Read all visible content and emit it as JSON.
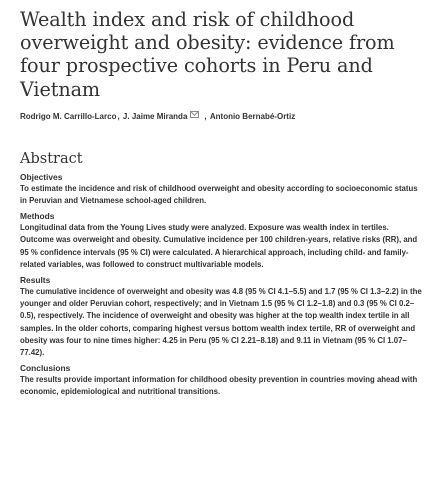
{
  "article": {
    "title": "Wealth index and risk of childhood overweight and obesity: evidence from four prospective cohorts in Peru and Vietnam",
    "authors": [
      "Rodrigo M. Carrillo-Larco",
      "J. Jaime Miranda",
      "Antonio Bernabé-Ortiz"
    ],
    "author_separator": ",",
    "author_separator_2": ", "
  },
  "abstract": {
    "heading": "Abstract",
    "sections": [
      {
        "heading": "Objectives",
        "text": "To estimate the incidence and risk of childhood overweight and obesity according to socioeconomic status in Peruvian and Vietnamese school-aged children."
      },
      {
        "heading": "Methods",
        "text": "Longitudinal data from the Young Lives study were analyzed. Exposure was wealth index in tertiles. Outcome was overweight and obesity. Cumulative incidence per 100 children-years, relative risks (RR), and 95 % confidence intervals (95 % CI) were calculated. A hierarchical approach, including child- and family-related variables, was followed to construct multivariable models."
      },
      {
        "heading": "Results",
        "text": "The cumulative incidence of overweight and obesity was 4.8 (95 % CI 4.1–5.5) and 1.7 (95 % CI 1.3–2.2) in the younger and older Peruvian cohort, respectively; and in Vietnam 1.5 (95 % CI 1.2–1.8) and 0.3 (95 % CI 0.2–0.5), respectively. The incidence of overweight and obesity was higher at the top wealth index tertile in all samples. In the older cohorts, comparing highest versus bottom wealth index tertile, RR of overweight and obesity was four to nine times higher: 4.25 in Peru (95 % CI 2.21–8.18) and 9.11 in Vietnam (95 % CI 1.07–77.42)."
      },
      {
        "heading": "Conclusions",
        "text": "The results provide important information for childhood obesity prevention in countries moving ahead with economic, epidemiological and nutritional transitions."
      }
    ]
  },
  "icons": {
    "author_contact": "mail-icon"
  },
  "colors": {
    "text": "#333333",
    "background": "#ffffff"
  }
}
